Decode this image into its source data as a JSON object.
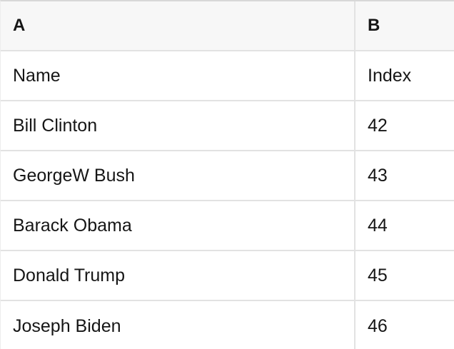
{
  "table": {
    "column_headers": [
      {
        "label": "A"
      },
      {
        "label": "B"
      }
    ],
    "rows": [
      {
        "a": "Name",
        "b": "Index"
      },
      {
        "a": "Bill Clinton",
        "b": "42"
      },
      {
        "a": "GeorgeW Bush",
        "b": "43"
      },
      {
        "a": "Barack Obama",
        "b": "44"
      },
      {
        "a": "Donald Trump",
        "b": "45"
      },
      {
        "a": "Joseph Biden",
        "b": "46"
      }
    ]
  },
  "colors": {
    "header_bg": "#f7f7f7",
    "row_bg": "#ffffff",
    "grid_line": "#e2e2e2",
    "top_border": "#d8d8d8",
    "edge_border": "#ededed",
    "text": "#161616"
  }
}
